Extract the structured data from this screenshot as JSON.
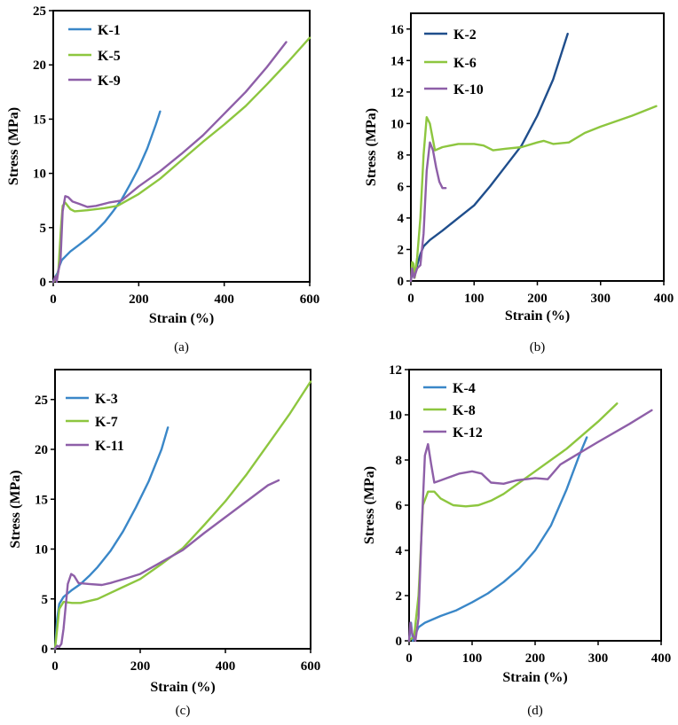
{
  "chart_data": [
    {
      "type": "line",
      "panel": "(a)",
      "xlabel": "Strain (%)",
      "ylabel": "Stress (MPa)",
      "xlim": [
        0,
        600
      ],
      "ylim": [
        0,
        25
      ],
      "xticks": [
        0,
        200,
        400,
        600
      ],
      "yticks": [
        0,
        5,
        10,
        15,
        20,
        25
      ],
      "grid": false,
      "legend": "top-left",
      "series": [
        {
          "name": "K-1",
          "color": "#3a87c8",
          "points": [
            [
              0,
              0
            ],
            [
              5,
              0.5
            ],
            [
              10,
              0.8
            ],
            [
              15,
              1.5
            ],
            [
              20,
              2
            ],
            [
              40,
              2.8
            ],
            [
              60,
              3.4
            ],
            [
              80,
              4
            ],
            [
              100,
              4.7
            ],
            [
              120,
              5.5
            ],
            [
              140,
              6.5
            ],
            [
              160,
              7.6
            ],
            [
              180,
              9
            ],
            [
              200,
              10.5
            ],
            [
              220,
              12.3
            ],
            [
              240,
              14.5
            ],
            [
              250,
              15.7
            ]
          ]
        },
        {
          "name": "K-5",
          "color": "#8dc63f",
          "points": [
            [
              0,
              0
            ],
            [
              8,
              0.3
            ],
            [
              12,
              1
            ],
            [
              18,
              5
            ],
            [
              22,
              7
            ],
            [
              28,
              7.3
            ],
            [
              40,
              6.7
            ],
            [
              50,
              6.5
            ],
            [
              80,
              6.6
            ],
            [
              120,
              6.8
            ],
            [
              150,
              7
            ],
            [
              200,
              8.1
            ],
            [
              250,
              9.5
            ],
            [
              300,
              11.2
            ],
            [
              350,
              12.9
            ],
            [
              400,
              14.5
            ],
            [
              450,
              16.2
            ],
            [
              500,
              18.2
            ],
            [
              550,
              20.3
            ],
            [
              600,
              22.5
            ]
          ]
        },
        {
          "name": "K-9",
          "color": "#8e5fa8",
          "points": [
            [
              0,
              0
            ],
            [
              5,
              0.5
            ],
            [
              8,
              0
            ],
            [
              12,
              1
            ],
            [
              17,
              2
            ],
            [
              22,
              6.5
            ],
            [
              28,
              7.9
            ],
            [
              35,
              7.8
            ],
            [
              45,
              7.4
            ],
            [
              60,
              7.2
            ],
            [
              80,
              6.9
            ],
            [
              100,
              7
            ],
            [
              130,
              7.3
            ],
            [
              160,
              7.5
            ],
            [
              200,
              8.8
            ],
            [
              250,
              10.2
            ],
            [
              300,
              11.8
            ],
            [
              350,
              13.5
            ],
            [
              400,
              15.5
            ],
            [
              450,
              17.5
            ],
            [
              500,
              19.8
            ],
            [
              545,
              22.1
            ]
          ]
        }
      ]
    },
    {
      "type": "line",
      "panel": "(b)",
      "xlabel": "Strain (%)",
      "ylabel": "Stress (MPa)",
      "xlim": [
        0,
        400
      ],
      "ylim": [
        0,
        17
      ],
      "xticks": [
        0,
        100,
        200,
        300,
        400
      ],
      "yticks": [
        0,
        2,
        4,
        6,
        8,
        10,
        12,
        14,
        16
      ],
      "grid": false,
      "legend": "top-left",
      "series": [
        {
          "name": "K-2",
          "color": "#1f4e8c",
          "points": [
            [
              0,
              0
            ],
            [
              3,
              0.8
            ],
            [
              6,
              0.3
            ],
            [
              10,
              1
            ],
            [
              15,
              1.7
            ],
            [
              20,
              2.2
            ],
            [
              30,
              2.6
            ],
            [
              50,
              3.2
            ],
            [
              75,
              4
            ],
            [
              100,
              4.8
            ],
            [
              125,
              6
            ],
            [
              150,
              7.3
            ],
            [
              175,
              8.6
            ],
            [
              200,
              10.5
            ],
            [
              225,
              12.8
            ],
            [
              248,
              15.7
            ]
          ]
        },
        {
          "name": "K-6",
          "color": "#8dc63f",
          "points": [
            [
              0,
              0
            ],
            [
              2,
              1.2
            ],
            [
              4,
              1.1
            ],
            [
              6,
              0.2
            ],
            [
              10,
              1.5
            ],
            [
              15,
              4
            ],
            [
              20,
              8
            ],
            [
              25,
              10.4
            ],
            [
              30,
              10
            ],
            [
              38,
              8.3
            ],
            [
              50,
              8.5
            ],
            [
              75,
              8.7
            ],
            [
              100,
              8.7
            ],
            [
              115,
              8.6
            ],
            [
              130,
              8.3
            ],
            [
              150,
              8.4
            ],
            [
              175,
              8.5
            ],
            [
              200,
              8.8
            ],
            [
              210,
              8.9
            ],
            [
              225,
              8.7
            ],
            [
              250,
              8.8
            ],
            [
              275,
              9.4
            ],
            [
              300,
              9.8
            ],
            [
              350,
              10.5
            ],
            [
              388,
              11.1
            ]
          ]
        },
        {
          "name": "K-10",
          "color": "#8e5fa8",
          "points": [
            [
              0,
              0
            ],
            [
              2,
              0.8
            ],
            [
              5,
              0.2
            ],
            [
              10,
              0.8
            ],
            [
              15,
              1
            ],
            [
              20,
              3
            ],
            [
              25,
              7
            ],
            [
              30,
              8.8
            ],
            [
              35,
              8.3
            ],
            [
              40,
              7.2
            ],
            [
              45,
              6.3
            ],
            [
              50,
              5.9
            ],
            [
              55,
              5.9
            ]
          ]
        }
      ]
    },
    {
      "type": "line",
      "panel": "(c)",
      "xlabel": "Strain (%)",
      "ylabel": "Stress (MPa)",
      "xlim": [
        0,
        600
      ],
      "ylim": [
        0,
        28
      ],
      "xticks": [
        0,
        200,
        400,
        600
      ],
      "yticks": [
        0,
        5,
        10,
        15,
        20,
        25
      ],
      "grid": false,
      "legend": "top-left",
      "series": [
        {
          "name": "K-3",
          "color": "#3a87c8",
          "points": [
            [
              0,
              0
            ],
            [
              5,
              3
            ],
            [
              10,
              4.5
            ],
            [
              20,
              5.2
            ],
            [
              40,
              5.9
            ],
            [
              60,
              6.5
            ],
            [
              80,
              7.3
            ],
            [
              100,
              8.2
            ],
            [
              130,
              9.8
            ],
            [
              160,
              11.8
            ],
            [
              190,
              14.2
            ],
            [
              220,
              16.8
            ],
            [
              250,
              20
            ],
            [
              265,
              22.2
            ]
          ]
        },
        {
          "name": "K-7",
          "color": "#8dc63f",
          "points": [
            [
              0,
              0
            ],
            [
              5,
              2
            ],
            [
              10,
              4
            ],
            [
              20,
              4.7
            ],
            [
              40,
              4.6
            ],
            [
              60,
              4.6
            ],
            [
              100,
              5
            ],
            [
              150,
              6
            ],
            [
              200,
              7
            ],
            [
              250,
              8.5
            ],
            [
              300,
              10.1
            ],
            [
              350,
              12.4
            ],
            [
              400,
              14.8
            ],
            [
              450,
              17.5
            ],
            [
              500,
              20.5
            ],
            [
              550,
              23.5
            ],
            [
              600,
              26.8
            ]
          ]
        },
        {
          "name": "K-11",
          "color": "#8e5fa8",
          "points": [
            [
              0,
              0
            ],
            [
              5,
              0.3
            ],
            [
              10,
              0.2
            ],
            [
              15,
              0.5
            ],
            [
              20,
              2
            ],
            [
              30,
              6.5
            ],
            [
              38,
              7.5
            ],
            [
              45,
              7.3
            ],
            [
              55,
              6.6
            ],
            [
              80,
              6.5
            ],
            [
              110,
              6.4
            ],
            [
              130,
              6.6
            ],
            [
              170,
              7.1
            ],
            [
              200,
              7.5
            ],
            [
              250,
              8.7
            ],
            [
              300,
              9.9
            ],
            [
              350,
              11.6
            ],
            [
              400,
              13.2
            ],
            [
              450,
              14.8
            ],
            [
              500,
              16.4
            ],
            [
              525,
              16.9
            ]
          ]
        }
      ]
    },
    {
      "type": "line",
      "panel": "(d)",
      "xlabel": "Strain (%)",
      "ylabel": "Stress (MPa)",
      "xlim": [
        0,
        400
      ],
      "ylim": [
        0,
        12
      ],
      "xticks": [
        0,
        100,
        200,
        300,
        400
      ],
      "yticks": [
        0,
        2,
        4,
        6,
        8,
        10,
        12
      ],
      "grid": false,
      "legend": "top-left",
      "series": [
        {
          "name": "K-4",
          "color": "#3a87c8",
          "points": [
            [
              0,
              0
            ],
            [
              3,
              0.8
            ],
            [
              6,
              0
            ],
            [
              10,
              0.3
            ],
            [
              15,
              0.6
            ],
            [
              25,
              0.8
            ],
            [
              50,
              1.1
            ],
            [
              75,
              1.35
            ],
            [
              100,
              1.7
            ],
            [
              125,
              2.1
            ],
            [
              150,
              2.6
            ],
            [
              175,
              3.2
            ],
            [
              200,
              4
            ],
            [
              225,
              5.1
            ],
            [
              250,
              6.7
            ],
            [
              270,
              8.2
            ],
            [
              282,
              9
            ]
          ]
        },
        {
          "name": "K-8",
          "color": "#8dc63f",
          "points": [
            [
              0,
              0
            ],
            [
              8,
              0.2
            ],
            [
              15,
              2
            ],
            [
              22,
              6
            ],
            [
              30,
              6.6
            ],
            [
              40,
              6.6
            ],
            [
              50,
              6.3
            ],
            [
              70,
              6
            ],
            [
              90,
              5.95
            ],
            [
              110,
              6
            ],
            [
              130,
              6.2
            ],
            [
              150,
              6.5
            ],
            [
              175,
              7
            ],
            [
              200,
              7.5
            ],
            [
              250,
              8.5
            ],
            [
              300,
              9.7
            ],
            [
              330,
              10.5
            ]
          ]
        },
        {
          "name": "K-12",
          "color": "#8e5fa8",
          "points": [
            [
              0,
              0
            ],
            [
              2,
              0.8
            ],
            [
              5,
              0.3
            ],
            [
              10,
              0
            ],
            [
              15,
              1
            ],
            [
              20,
              5
            ],
            [
              25,
              8.2
            ],
            [
              30,
              8.7
            ],
            [
              35,
              7.8
            ],
            [
              40,
              7
            ],
            [
              50,
              7.1
            ],
            [
              60,
              7.2
            ],
            [
              80,
              7.4
            ],
            [
              100,
              7.5
            ],
            [
              115,
              7.4
            ],
            [
              130,
              7
            ],
            [
              150,
              6.95
            ],
            [
              170,
              7.1
            ],
            [
              200,
              7.2
            ],
            [
              220,
              7.15
            ],
            [
              240,
              7.8
            ],
            [
              270,
              8.3
            ],
            [
              300,
              8.8
            ],
            [
              350,
              9.6
            ],
            [
              385,
              10.2
            ]
          ]
        }
      ]
    }
  ]
}
